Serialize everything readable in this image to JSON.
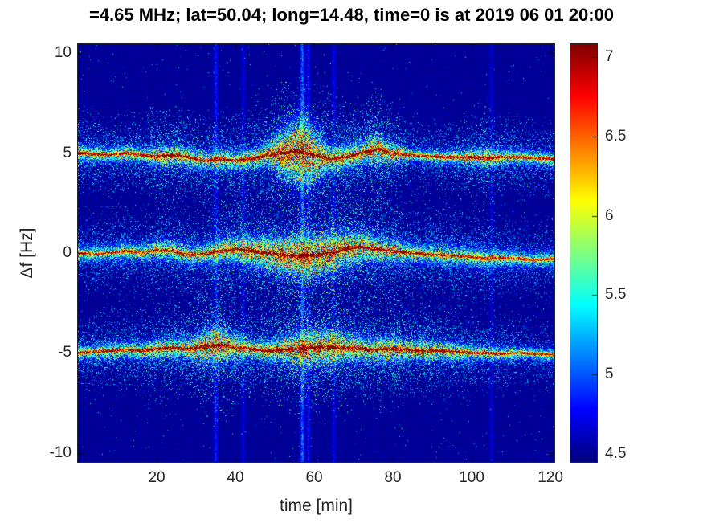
{
  "title": "=4.65 MHz;  lat=50.04; long=14.48, time=0 is at 2019 06 01 20:00",
  "chart_data": {
    "type": "heatmap",
    "title": "=4.65 MHz;  lat=50.04; long=14.48, time=0 is at 2019 06 01 20:00",
    "xlabel": "time [min]",
    "ylabel": "Δf [Hz]",
    "xlim": [
      0,
      121
    ],
    "ylim": [
      -10.45,
      10.45
    ],
    "xticks": [
      20,
      40,
      60,
      80,
      100,
      120
    ],
    "yticks": [
      10,
      5,
      0,
      -5,
      -10
    ],
    "grid": false,
    "colorbar": {
      "colormap": "jet",
      "clim": [
        4.45,
        7.08
      ],
      "ticks": [
        7,
        6.5,
        6,
        5.5,
        5,
        4.5
      ],
      "position": "right"
    },
    "background_value": 4.45,
    "sample_times_min": [
      0,
      4,
      8,
      12,
      16,
      20,
      24,
      28,
      32,
      36,
      40,
      44,
      48,
      52,
      56,
      60,
      64,
      68,
      72,
      76,
      80,
      84,
      88,
      92,
      96,
      100,
      104,
      108,
      112,
      116,
      120
    ],
    "bands": [
      {
        "name": "upper-doppler-trace",
        "center_hz": [
          5.0,
          4.95,
          4.9,
          5.0,
          4.9,
          4.8,
          4.9,
          4.8,
          4.6,
          4.7,
          4.6,
          4.7,
          4.9,
          5.0,
          5.1,
          4.9,
          4.7,
          4.8,
          5.0,
          5.2,
          5.0,
          4.9,
          4.85,
          4.8,
          4.8,
          4.8,
          4.75,
          4.8,
          4.8,
          4.75,
          4.7
        ],
        "sigma_hz": [
          0.25,
          0.25,
          0.22,
          0.25,
          0.22,
          0.3,
          0.3,
          0.28,
          0.3,
          0.3,
          0.3,
          0.3,
          0.35,
          0.7,
          1.0,
          0.8,
          0.4,
          0.35,
          0.35,
          0.4,
          0.3,
          0.22,
          0.2,
          0.2,
          0.22,
          0.25,
          0.3,
          0.25,
          0.22,
          0.22,
          0.22
        ],
        "intensity": [
          0.7,
          0.75,
          0.7,
          0.75,
          0.7,
          0.85,
          0.9,
          0.8,
          0.75,
          0.8,
          0.75,
          0.8,
          0.85,
          1.0,
          1.0,
          0.95,
          0.8,
          0.85,
          0.9,
          0.95,
          0.85,
          0.7,
          0.65,
          0.7,
          0.75,
          0.8,
          0.85,
          0.75,
          0.7,
          0.65,
          0.7
        ]
      },
      {
        "name": "carrier-trace",
        "center_hz": [
          0.0,
          -0.05,
          0.0,
          0.1,
          0.0,
          0.15,
          0.1,
          -0.1,
          -0.05,
          0.1,
          0.2,
          0.1,
          0.0,
          -0.1,
          -0.15,
          -0.1,
          0.0,
          0.2,
          0.3,
          0.2,
          0.1,
          0.0,
          -0.05,
          -0.1,
          -0.15,
          -0.2,
          -0.3,
          -0.25,
          -0.3,
          -0.35,
          -0.3
        ],
        "sigma_hz": [
          0.25,
          0.25,
          0.25,
          0.28,
          0.25,
          0.3,
          0.3,
          0.3,
          0.3,
          0.35,
          0.4,
          0.45,
          0.5,
          0.55,
          0.6,
          0.6,
          0.55,
          0.5,
          0.45,
          0.4,
          0.35,
          0.3,
          0.3,
          0.3,
          0.3,
          0.3,
          0.3,
          0.28,
          0.25,
          0.25,
          0.25
        ],
        "intensity": [
          0.6,
          0.65,
          0.6,
          0.7,
          0.65,
          0.75,
          0.8,
          0.75,
          0.7,
          0.8,
          0.85,
          0.9,
          0.9,
          0.95,
          1.0,
          1.0,
          1.0,
          0.95,
          0.9,
          0.85,
          0.8,
          0.75,
          0.7,
          0.75,
          0.7,
          0.65,
          0.7,
          0.65,
          0.6,
          0.6,
          0.6
        ]
      },
      {
        "name": "lower-doppler-trace",
        "center_hz": [
          -5.0,
          -4.95,
          -4.9,
          -4.85,
          -4.9,
          -4.8,
          -4.75,
          -4.8,
          -4.7,
          -4.6,
          -4.75,
          -4.8,
          -4.9,
          -4.85,
          -4.8,
          -4.75,
          -4.7,
          -4.75,
          -4.8,
          -4.85,
          -4.8,
          -4.85,
          -4.9,
          -4.9,
          -4.95,
          -5.0,
          -5.0,
          -5.05,
          -5.0,
          -5.05,
          -5.1
        ],
        "sigma_hz": [
          0.22,
          0.22,
          0.25,
          0.25,
          0.25,
          0.3,
          0.3,
          0.3,
          0.45,
          0.5,
          0.35,
          0.3,
          0.3,
          0.35,
          0.45,
          0.5,
          0.5,
          0.4,
          0.35,
          0.35,
          0.35,
          0.3,
          0.3,
          0.3,
          0.28,
          0.25,
          0.22,
          0.22,
          0.2,
          0.2,
          0.2
        ],
        "intensity": [
          0.7,
          0.7,
          0.75,
          0.7,
          0.75,
          0.8,
          0.8,
          0.85,
          0.95,
          1.0,
          0.85,
          0.8,
          0.85,
          0.9,
          1.0,
          1.0,
          1.0,
          0.9,
          0.85,
          0.85,
          0.9,
          0.85,
          0.85,
          0.8,
          0.75,
          0.7,
          0.7,
          0.65,
          0.6,
          0.6,
          0.6
        ]
      }
    ],
    "vertical_streaks": [
      {
        "time_min": 35,
        "strength": 0.5
      },
      {
        "time_min": 42,
        "strength": 0.3
      },
      {
        "time_min": 57,
        "strength": 0.85
      },
      {
        "time_min": 58.5,
        "strength": 0.45
      },
      {
        "time_min": 65,
        "strength": 0.35
      },
      {
        "time_min": 105,
        "strength": 0.25
      }
    ],
    "noise_seed": 20190601
  },
  "colors": {
    "figure_background": "#ffffff",
    "axis_text": "#262626",
    "title_text": "#000000",
    "plot_border": "#262626",
    "heatmap_background": "#00008f"
  }
}
